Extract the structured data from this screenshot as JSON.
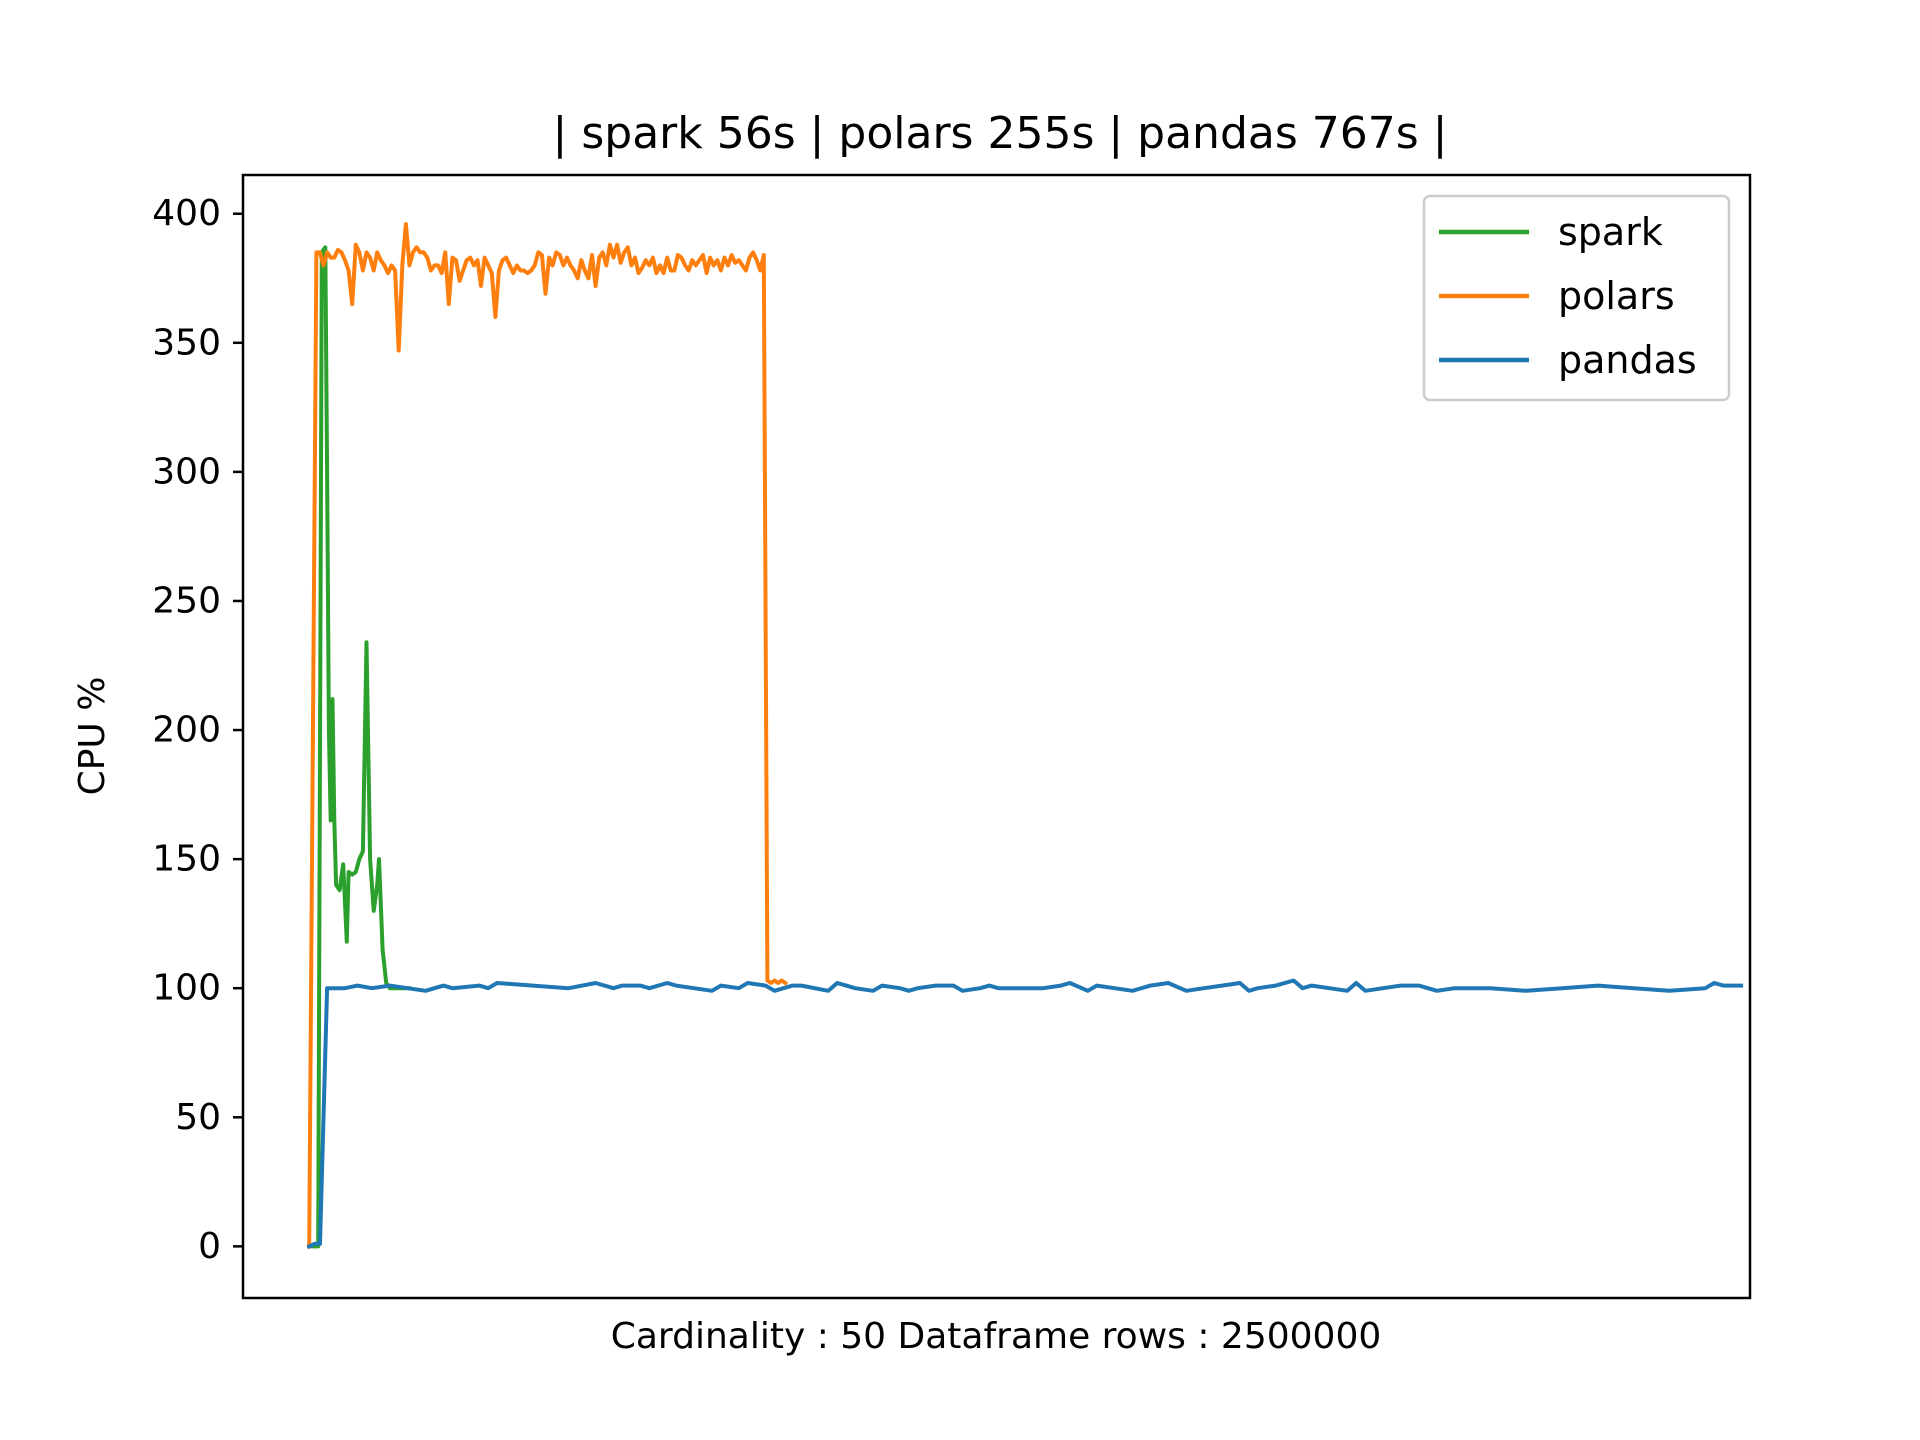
{
  "chart_data": {
    "type": "line",
    "title": "| spark 56s | polars 255s | pandas 767s |",
    "xlabel": "Cardinality : 50 Dataframe rows : 2500000",
    "ylabel": "CPU %",
    "xlim": [
      -37,
      805
    ],
    "ylim": [
      -20,
      415
    ],
    "yticks": [
      0,
      50,
      100,
      150,
      200,
      250,
      300,
      350,
      400
    ],
    "legend_position": "upper right",
    "grid": false,
    "series": [
      {
        "name": "spark",
        "color": "#2ca02c",
        "x": [
          0,
          5,
          7,
          9,
          10,
          11,
          12,
          13,
          14,
          15,
          17,
          19,
          21,
          22,
          24,
          26,
          28,
          30,
          32,
          34,
          36,
          38,
          39,
          41,
          43,
          45,
          47,
          50,
          52,
          54,
          56
        ],
        "y": [
          0,
          0,
          385,
          387,
          300,
          200,
          165,
          212,
          165,
          140,
          138,
          148,
          118,
          145,
          144,
          145,
          150,
          153,
          234,
          150,
          130,
          140,
          150,
          115,
          102,
          100,
          100,
          100,
          100,
          100,
          100
        ]
      },
      {
        "name": "polars",
        "color": "#ff7f0e",
        "x": [
          0,
          4,
          6,
          8,
          10,
          12,
          14,
          16,
          18,
          20,
          22,
          24,
          26,
          28,
          30,
          32,
          34,
          36,
          38,
          40,
          42,
          44,
          46,
          48,
          50,
          52,
          54,
          56,
          58,
          60,
          62,
          64,
          66,
          68,
          70,
          72,
          74,
          76,
          78,
          80,
          82,
          84,
          86,
          88,
          90,
          92,
          94,
          96,
          98,
          100,
          102,
          104,
          106,
          108,
          110,
          112,
          114,
          116,
          118,
          120,
          122,
          124,
          126,
          128,
          130,
          132,
          134,
          136,
          138,
          140,
          142,
          144,
          146,
          148,
          150,
          152,
          154,
          156,
          158,
          160,
          162,
          164,
          166,
          168,
          170,
          172,
          174,
          176,
          178,
          180,
          182,
          184,
          186,
          188,
          190,
          192,
          194,
          196,
          198,
          200,
          202,
          204,
          206,
          208,
          210,
          212,
          214,
          216,
          218,
          220,
          222,
          224,
          226,
          228,
          230,
          232,
          234,
          236,
          238,
          240,
          242,
          244,
          246,
          248,
          250,
          252,
          254,
          256,
          258,
          260,
          262,
          264,
          266
        ],
        "y": [
          0,
          385,
          385,
          380,
          385,
          383,
          383,
          386,
          385,
          382,
          378,
          365,
          388,
          385,
          378,
          385,
          383,
          378,
          385,
          382,
          380,
          377,
          380,
          378,
          347,
          380,
          396,
          380,
          385,
          387,
          385,
          385,
          383,
          378,
          380,
          380,
          377,
          385,
          365,
          383,
          382,
          374,
          378,
          382,
          383,
          380,
          382,
          372,
          383,
          380,
          377,
          360,
          378,
          382,
          383,
          380,
          377,
          380,
          378,
          378,
          377,
          378,
          380,
          385,
          384,
          369,
          383,
          380,
          385,
          384,
          380,
          383,
          380,
          378,
          375,
          382,
          378,
          375,
          384,
          372,
          383,
          385,
          380,
          388,
          383,
          388,
          381,
          385,
          387,
          380,
          383,
          377,
          379,
          382,
          380,
          383,
          377,
          380,
          377,
          383,
          378,
          378,
          384,
          383,
          380,
          378,
          382,
          380,
          382,
          384,
          377,
          383,
          380,
          382,
          378,
          383,
          380,
          384,
          381,
          382,
          380,
          378,
          383,
          385,
          382,
          378,
          384,
          103,
          102,
          103,
          102,
          103,
          102
        ]
      },
      {
        "name": "pandas",
        "color": "#1f77b4",
        "x": [
          0,
          3,
          6,
          10,
          20,
          27,
          35,
          45,
          55,
          65,
          70,
          75,
          80,
          95,
          100,
          105,
          125,
          145,
          160,
          170,
          175,
          185,
          190,
          200,
          205,
          215,
          225,
          230,
          240,
          245,
          255,
          260,
          265,
          270,
          275,
          290,
          295,
          300,
          305,
          315,
          320,
          330,
          335,
          340,
          350,
          360,
          365,
          375,
          380,
          385,
          400,
          410,
          420,
          425,
          435,
          440,
          450,
          460,
          470,
          480,
          490,
          500,
          510,
          520,
          525,
          530,
          540,
          550,
          555,
          560,
          570,
          580,
          585,
          590,
          600,
          610,
          620,
          630,
          640,
          660,
          680,
          700,
          720,
          740,
          760,
          780,
          785,
          790,
          795,
          800
        ],
        "y": [
          0,
          1,
          1,
          100,
          100,
          101,
          100,
          101,
          100,
          99,
          100,
          101,
          100,
          101,
          100,
          102,
          101,
          100,
          102,
          100,
          101,
          101,
          100,
          102,
          101,
          100,
          99,
          101,
          100,
          102,
          101,
          99,
          100,
          101,
          101,
          99,
          102,
          101,
          100,
          99,
          101,
          100,
          99,
          100,
          101,
          101,
          99,
          100,
          101,
          100,
          100,
          100,
          101,
          102,
          99,
          101,
          100,
          99,
          101,
          102,
          99,
          100,
          101,
          102,
          99,
          100,
          101,
          103,
          100,
          101,
          100,
          99,
          102,
          99,
          100,
          101,
          101,
          99,
          100,
          100,
          99,
          100,
          101,
          100,
          99,
          100,
          102,
          101,
          101,
          101
        ]
      }
    ]
  }
}
